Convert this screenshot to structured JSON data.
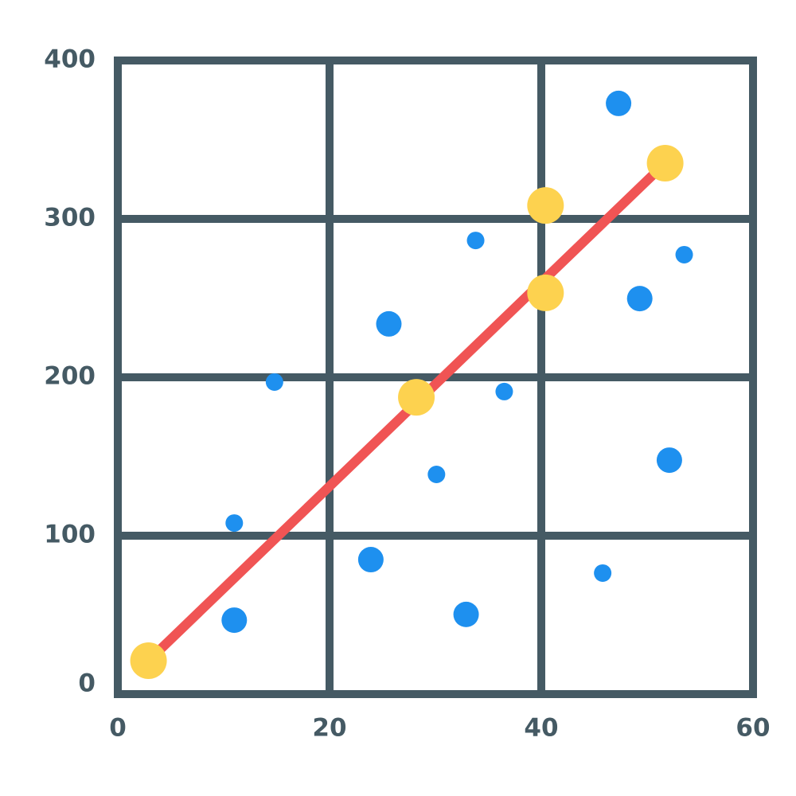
{
  "chart_data": {
    "type": "scatter",
    "xlim": [
      0,
      60
    ],
    "ylim": [
      0,
      400
    ],
    "xticks": [
      0,
      20,
      40,
      60
    ],
    "yticks": [
      0,
      100,
      200,
      300,
      400
    ],
    "grid": true,
    "grid_color": "#455a64",
    "series": [
      {
        "color": "#1e90ef",
        "marker": "circle",
        "x": [
          47.3,
          33.8,
          53.5,
          25.6,
          49.3,
          14.8,
          36.5,
          30.1,
          52.1,
          11.0,
          23.9,
          45.8,
          11.0,
          32.9
        ],
        "y": [
          372.9,
          286.4,
          277.4,
          233.7,
          249.7,
          197.0,
          191.0,
          138.7,
          147.7,
          108.0,
          84.9,
          76.4,
          46.7,
          50.3
        ],
        "sizes": [
          16,
          11,
          11,
          16,
          16,
          11,
          11,
          11,
          16,
          11,
          16,
          11,
          16,
          16
        ]
      },
      {
        "color": "#f05454",
        "marker": "line",
        "x": [
          2.9,
          51.7
        ],
        "y": [
          21.1,
          335.2
        ]
      },
      {
        "color": "#fdd24f",
        "marker": "circle",
        "x": [
          2.9,
          28.2,
          40.4,
          40.4,
          51.7
        ],
        "y": [
          21.1,
          187.4,
          253.3,
          308.5,
          335.2
        ],
        "sizes": [
          23,
          23,
          23,
          23,
          23
        ]
      }
    ]
  }
}
